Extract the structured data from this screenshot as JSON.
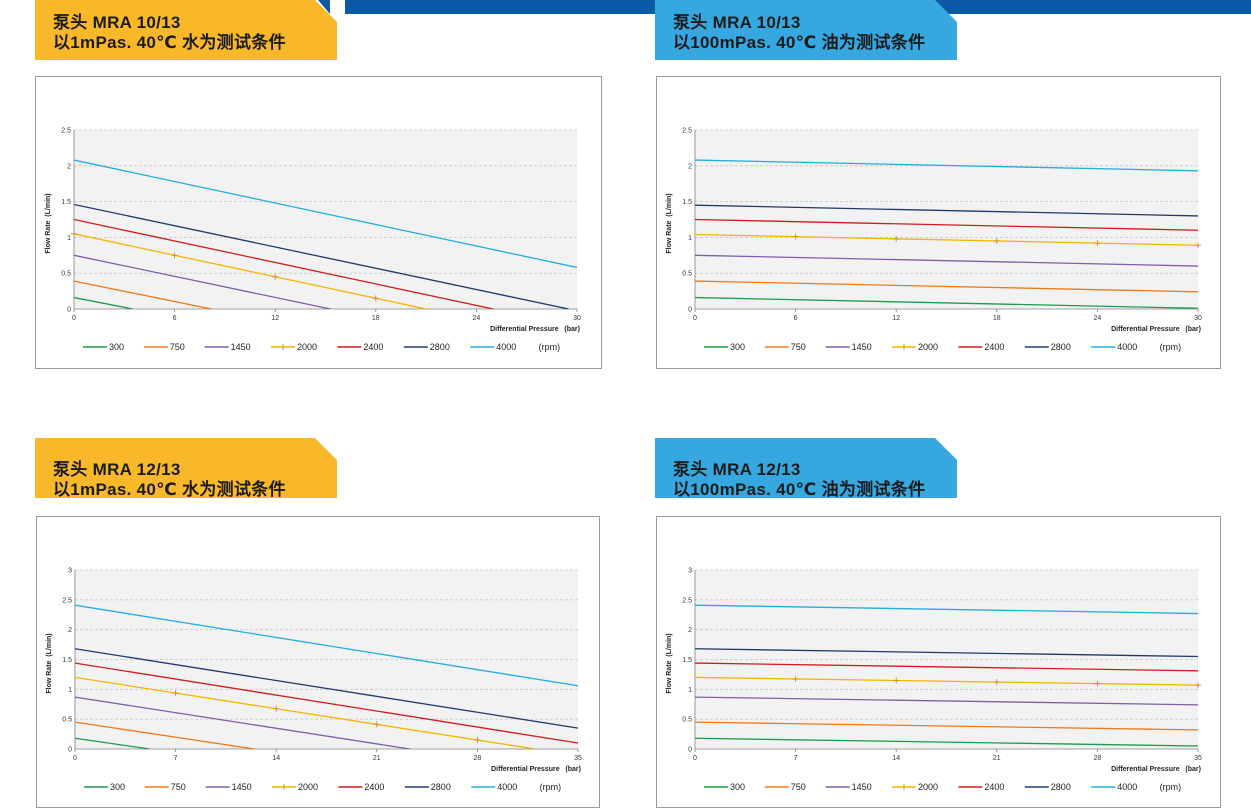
{
  "colors": {
    "top_bar": "#0a5aa6",
    "water_header": "#f9b82a",
    "oil_header": "#37a7df",
    "series": [
      "#1a9d4a",
      "#f07a1a",
      "#7d5fa8",
      "#f5b400",
      "#d01c1c",
      "#1f3a6b",
      "#20aee0"
    ]
  },
  "panels": [
    {
      "header_line1": "泵头 MRA 10/13",
      "header_line2": "以1mPas. 40℃ 水为测试条件",
      "header_color": "water",
      "chart_data": {
        "type": "line",
        "xlabel": "Differential Pressure   (bar)",
        "ylabel": "Flow Rate  (L/min)",
        "xlim": [
          0,
          30
        ],
        "ylim": [
          0,
          2.5
        ],
        "xticks": [
          0,
          6,
          12,
          18,
          24,
          30
        ],
        "yticks": [
          0,
          0.5,
          1,
          1.5,
          2,
          2.5
        ],
        "grid": true,
        "legend_unit": "(rpm)",
        "series": [
          {
            "name": "300",
            "x": [
              0,
              3.5
            ],
            "y": [
              0.16,
              0
            ]
          },
          {
            "name": "750",
            "x": [
              0,
              8.2
            ],
            "y": [
              0.39,
              0
            ]
          },
          {
            "name": "1450",
            "x": [
              0,
              15.3
            ],
            "y": [
              0.75,
              0
            ]
          },
          {
            "name": "2000",
            "x": [
              0,
              21
            ],
            "y": [
              1.05,
              0
            ],
            "markers": [
              0,
              6,
              12,
              18
            ]
          },
          {
            "name": "2400",
            "x": [
              0,
              25
            ],
            "y": [
              1.25,
              0
            ]
          },
          {
            "name": "2800",
            "x": [
              0,
              29.5
            ],
            "y": [
              1.46,
              0
            ]
          },
          {
            "name": "4000",
            "x": [
              0,
              30
            ],
            "y": [
              2.08,
              0.58
            ]
          }
        ]
      }
    },
    {
      "header_line1": "泵头 MRA 10/13",
      "header_line2": "以100mPas. 40℃ 油为测试条件",
      "header_color": "oil",
      "chart_data": {
        "type": "line",
        "xlabel": "Differential Pressure   (bar)",
        "ylabel": "Flow Rate  (L/min)",
        "xlim": [
          0,
          30
        ],
        "ylim": [
          0,
          2.5
        ],
        "xticks": [
          0,
          6,
          12,
          18,
          24,
          30
        ],
        "yticks": [
          0,
          0.5,
          1,
          1.5,
          2,
          2.5
        ],
        "grid": true,
        "legend_unit": "(rpm)",
        "series": [
          {
            "name": "300",
            "x": [
              0,
              30
            ],
            "y": [
              0.16,
              0.01
            ]
          },
          {
            "name": "750",
            "x": [
              0,
              30
            ],
            "y": [
              0.39,
              0.24
            ]
          },
          {
            "name": "1450",
            "x": [
              0,
              30
            ],
            "y": [
              0.75,
              0.6
            ]
          },
          {
            "name": "2000",
            "x": [
              0,
              30
            ],
            "y": [
              1.04,
              0.89
            ],
            "markers": [
              6,
              12,
              18,
              24,
              30
            ]
          },
          {
            "name": "2400",
            "x": [
              0,
              30
            ],
            "y": [
              1.25,
              1.1
            ]
          },
          {
            "name": "2800",
            "x": [
              0,
              30
            ],
            "y": [
              1.45,
              1.3
            ]
          },
          {
            "name": "4000",
            "x": [
              0,
              30
            ],
            "y": [
              2.08,
              1.93
            ]
          }
        ]
      }
    },
    {
      "header_line1": "泵头 MRA 12/13",
      "header_line2": "以1mPas. 40℃ 水为测试条件",
      "header_color": "water",
      "chart_data": {
        "type": "line",
        "xlabel": "Differential Pressure   (bar)",
        "ylabel": "Flow Rate  (L/min)",
        "xlim": [
          0,
          35
        ],
        "ylim": [
          0,
          3
        ],
        "xticks": [
          0,
          7,
          14,
          21,
          28,
          35
        ],
        "yticks": [
          0,
          0.5,
          1,
          1.5,
          2,
          2.5,
          3
        ],
        "grid": true,
        "legend_unit": "(rpm)",
        "series": [
          {
            "name": "300",
            "x": [
              0,
              5.2
            ],
            "y": [
              0.18,
              0
            ]
          },
          {
            "name": "750",
            "x": [
              0,
              12.5
            ],
            "y": [
              0.45,
              0
            ]
          },
          {
            "name": "1450",
            "x": [
              0,
              23.3
            ],
            "y": [
              0.87,
              0
            ]
          },
          {
            "name": "2000",
            "x": [
              0,
              32
            ],
            "y": [
              1.2,
              0
            ],
            "markers": [
              7,
              14,
              21,
              28
            ]
          },
          {
            "name": "2400",
            "x": [
              0,
              35
            ],
            "y": [
              1.44,
              0.1
            ]
          },
          {
            "name": "2800",
            "x": [
              0,
              35
            ],
            "y": [
              1.68,
              0.35
            ]
          },
          {
            "name": "4000",
            "x": [
              0,
              35
            ],
            "y": [
              2.41,
              1.06
            ]
          }
        ]
      }
    },
    {
      "header_line1": "泵头 MRA 12/13",
      "header_line2": "以100mPas. 40℃ 油为测试条件",
      "header_color": "oil",
      "chart_data": {
        "type": "line",
        "xlabel": "Differential Pressure   (bar)",
        "ylabel": "Flow Rate  (L/min)",
        "xlim": [
          0,
          35
        ],
        "ylim": [
          0,
          3
        ],
        "xticks": [
          0,
          7,
          14,
          21,
          28,
          35
        ],
        "yticks": [
          0,
          0.5,
          1,
          1.5,
          2,
          2.5,
          3
        ],
        "grid": true,
        "legend_unit": "(rpm)",
        "series": [
          {
            "name": "300",
            "x": [
              0,
              35
            ],
            "y": [
              0.18,
              0.05
            ]
          },
          {
            "name": "750",
            "x": [
              0,
              35
            ],
            "y": [
              0.45,
              0.32
            ]
          },
          {
            "name": "1450",
            "x": [
              0,
              35
            ],
            "y": [
              0.87,
              0.74
            ]
          },
          {
            "name": "2000",
            "x": [
              0,
              35
            ],
            "y": [
              1.2,
              1.07
            ],
            "markers": [
              7,
              14,
              21,
              28,
              35
            ]
          },
          {
            "name": "2400",
            "x": [
              0,
              35
            ],
            "y": [
              1.44,
              1.31
            ]
          },
          {
            "name": "2800",
            "x": [
              0,
              35
            ],
            "y": [
              1.68,
              1.55
            ]
          },
          {
            "name": "4000",
            "x": [
              0,
              35
            ],
            "y": [
              2.41,
              2.27
            ]
          }
        ]
      }
    }
  ]
}
